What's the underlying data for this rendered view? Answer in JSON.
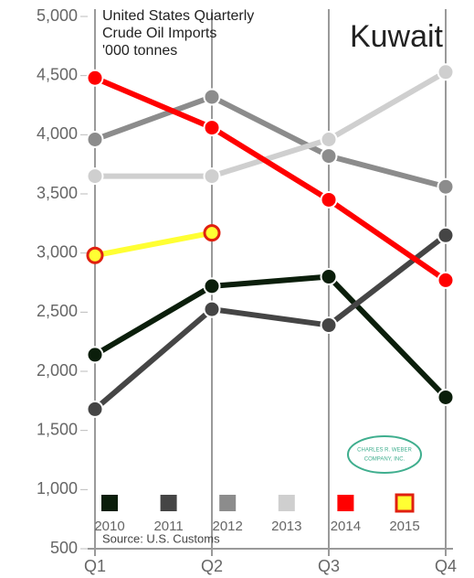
{
  "chart_data": {
    "type": "line",
    "title": [
      "United States Quarterly",
      "Crude Oil Imports"
    ],
    "subtitle": "'000 tonnes",
    "annotation": "Kuwait",
    "source": "Source: U.S. Customs",
    "logo": [
      "CHARLES R. WEBER",
      "COMPANY, INC."
    ],
    "categories": [
      "Q1",
      "Q2",
      "Q3",
      "Q4"
    ],
    "series": [
      {
        "name": "2010",
        "color": "#0b1e0b",
        "values": [
          2140,
          2720,
          2800,
          1780
        ]
      },
      {
        "name": "2011",
        "color": "#454545",
        "values": [
          1680,
          2525,
          2390,
          3150
        ]
      },
      {
        "name": "2012",
        "color": "#8c8c8c",
        "values": [
          3960,
          4320,
          3820,
          3560
        ]
      },
      {
        "name": "2013",
        "color": "#cfcfcf",
        "values": [
          3650,
          3650,
          3960,
          4530
        ]
      },
      {
        "name": "2014",
        "color": "#ff0000",
        "values": [
          4480,
          4060,
          3450,
          2770
        ]
      },
      {
        "name": "2015",
        "color": "#ffff33",
        "edgecolor": "#e02010",
        "values": [
          2980,
          3170,
          null,
          null
        ]
      }
    ],
    "ylim": [
      500,
      5000
    ],
    "yticks": [
      500,
      {
        "value": 1000,
        "label": "1,000"
      },
      {
        "value": 1500,
        "label": "1,500"
      },
      {
        "value": 2000,
        "label": "2,000"
      },
      {
        "value": 2500,
        "label": "2,500"
      },
      {
        "value": 3000,
        "label": "3,000"
      },
      {
        "value": 3500,
        "label": "3,500"
      },
      {
        "value": 4000,
        "label": "4,000"
      },
      {
        "value": 4500,
        "label": "4,500"
      },
      {
        "value": 5000,
        "label": "5,000"
      }
    ],
    "grid": "x"
  }
}
